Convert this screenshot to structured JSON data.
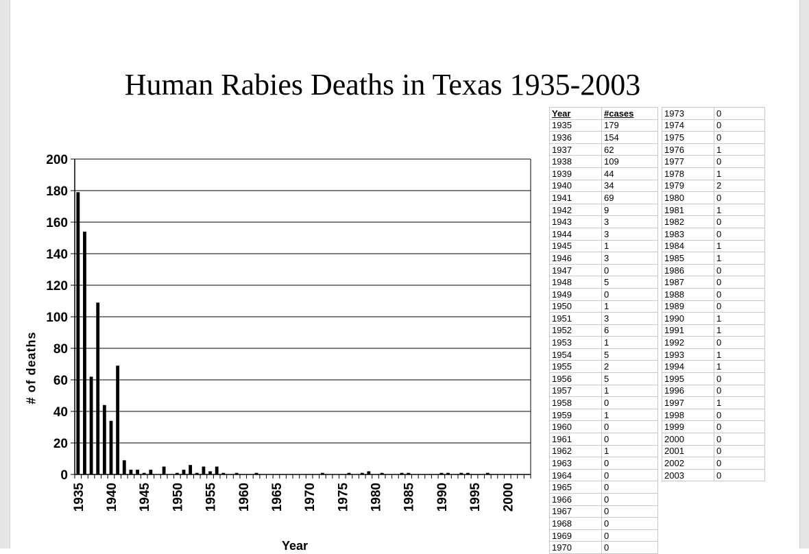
{
  "chart_data": {
    "type": "bar",
    "title": "Human Rabies Deaths in Texas 1935-2003",
    "xlabel": "Year",
    "ylabel": "# of deaths",
    "ylim": [
      0,
      200
    ],
    "yticks": [
      0,
      20,
      40,
      60,
      80,
      100,
      120,
      140,
      160,
      180,
      200
    ],
    "xtick_labels": [
      "1935",
      "1940",
      "1945",
      "1950",
      "1955",
      "1960",
      "1965",
      "1970",
      "1975",
      "1980",
      "1985",
      "1990",
      "1995",
      "2000"
    ],
    "grid": true,
    "categories": [
      "1935",
      "1936",
      "1937",
      "1938",
      "1939",
      "1940",
      "1941",
      "1942",
      "1943",
      "1944",
      "1945",
      "1946",
      "1947",
      "1948",
      "1949",
      "1950",
      "1951",
      "1952",
      "1953",
      "1954",
      "1955",
      "1956",
      "1957",
      "1958",
      "1959",
      "1960",
      "1961",
      "1962",
      "1963",
      "1964",
      "1965",
      "1966",
      "1967",
      "1968",
      "1969",
      "1970",
      "1971",
      "1972",
      "1973",
      "1974",
      "1975",
      "1976",
      "1977",
      "1978",
      "1979",
      "1980",
      "1981",
      "1982",
      "1983",
      "1984",
      "1985",
      "1986",
      "1987",
      "1988",
      "1989",
      "1990",
      "1991",
      "1992",
      "1993",
      "1994",
      "1995",
      "1996",
      "1997",
      "1998",
      "1999",
      "2000",
      "2001",
      "2002",
      "2003"
    ],
    "values": [
      179,
      154,
      62,
      109,
      44,
      34,
      69,
      9,
      3,
      3,
      1,
      3,
      0,
      5,
      0,
      1,
      3,
      6,
      1,
      5,
      2,
      5,
      1,
      0,
      1,
      0,
      0,
      1,
      0,
      0,
      0,
      0,
      0,
      0,
      0,
      0,
      0,
      1,
      0,
      0,
      0,
      1,
      0,
      1,
      2,
      0,
      1,
      0,
      0,
      1,
      1,
      0,
      0,
      0,
      0,
      1,
      1,
      0,
      1,
      1,
      0,
      0,
      1,
      0,
      0,
      0,
      0,
      0,
      0
    ],
    "bar_color": "#000000"
  },
  "table": {
    "headers": [
      "Year",
      "#cases"
    ],
    "left_rows": [
      [
        "1935",
        "179"
      ],
      [
        "1936",
        "154"
      ],
      [
        "1937",
        "62"
      ],
      [
        "1938",
        "109"
      ],
      [
        "1939",
        "44"
      ],
      [
        "1940",
        "34"
      ],
      [
        "1941",
        "69"
      ],
      [
        "1942",
        "9"
      ],
      [
        "1943",
        "3"
      ],
      [
        "1944",
        "3"
      ],
      [
        "1945",
        "1"
      ],
      [
        "1946",
        "3"
      ],
      [
        "1947",
        "0"
      ],
      [
        "1948",
        "5"
      ],
      [
        "1949",
        "0"
      ],
      [
        "1950",
        "1"
      ],
      [
        "1951",
        "3"
      ],
      [
        "1952",
        "6"
      ],
      [
        "1953",
        "1"
      ],
      [
        "1954",
        "5"
      ],
      [
        "1955",
        "2"
      ],
      [
        "1956",
        "5"
      ],
      [
        "1957",
        "1"
      ],
      [
        "1958",
        "0"
      ],
      [
        "1959",
        "1"
      ],
      [
        "1960",
        "0"
      ],
      [
        "1961",
        "0"
      ],
      [
        "1962",
        "1"
      ],
      [
        "1963",
        "0"
      ],
      [
        "1964",
        "0"
      ],
      [
        "1965",
        "0"
      ],
      [
        "1966",
        "0"
      ],
      [
        "1967",
        "0"
      ],
      [
        "1968",
        "0"
      ],
      [
        "1969",
        "0"
      ],
      [
        "1970",
        "0"
      ]
    ],
    "right_rows": [
      [
        "1973",
        "0"
      ],
      [
        "1974",
        "0"
      ],
      [
        "1975",
        "0"
      ],
      [
        "1976",
        "1"
      ],
      [
        "1977",
        "0"
      ],
      [
        "1978",
        "1"
      ],
      [
        "1979",
        "2"
      ],
      [
        "1980",
        "0"
      ],
      [
        "1981",
        "1"
      ],
      [
        "1982",
        "0"
      ],
      [
        "1983",
        "0"
      ],
      [
        "1984",
        "1"
      ],
      [
        "1985",
        "1"
      ],
      [
        "1986",
        "0"
      ],
      [
        "1987",
        "0"
      ],
      [
        "1988",
        "0"
      ],
      [
        "1989",
        "0"
      ],
      [
        "1990",
        "1"
      ],
      [
        "1991",
        "1"
      ],
      [
        "1992",
        "0"
      ],
      [
        "1993",
        "1"
      ],
      [
        "1994",
        "1"
      ],
      [
        "1995",
        "0"
      ],
      [
        "1996",
        "0"
      ],
      [
        "1997",
        "1"
      ],
      [
        "1998",
        "0"
      ],
      [
        "1999",
        "0"
      ],
      [
        "2000",
        "0"
      ],
      [
        "2001",
        "0"
      ],
      [
        "2002",
        "0"
      ],
      [
        "2003",
        "0"
      ]
    ]
  }
}
